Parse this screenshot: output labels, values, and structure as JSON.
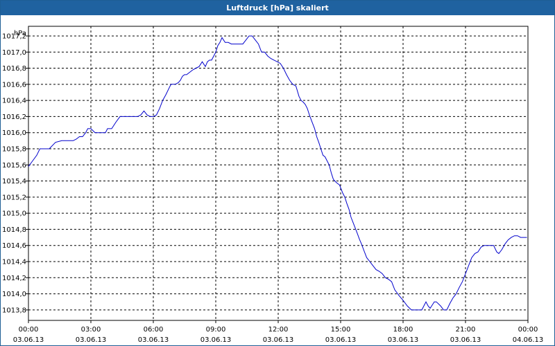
{
  "window": {
    "title": "Luftdruck [hPa] skaliert"
  },
  "chart_data": {
    "type": "line",
    "title": "Luftdruck [hPa] skaliert",
    "unit_label": "hPa",
    "xlabel": "",
    "ylabel": "hPa",
    "xlim": [
      0,
      24
    ],
    "ylim": [
      1013.67,
      1017.32
    ],
    "grid": true,
    "line_color": "#0000cc",
    "y_ticks": [
      1013.8,
      1014.0,
      1014.2,
      1014.4,
      1014.6,
      1014.8,
      1015.0,
      1015.2,
      1015.4,
      1015.6,
      1015.8,
      1016.0,
      1016.2,
      1016.4,
      1016.6,
      1016.8,
      1017.0,
      1017.2
    ],
    "y_tick_labels": [
      "1013,8",
      "1014,0",
      "1014,2",
      "1014,4",
      "1014,6",
      "1014,8",
      "1015,0",
      "1015,2",
      "1015,4",
      "1015,6",
      "1015,8",
      "1016,0",
      "1016,2",
      "1016,4",
      "1016,6",
      "1016,8",
      "1017,0",
      "1017,2"
    ],
    "x_ticks": [
      {
        "x": 0,
        "time": "00:00",
        "date": "03.06.13"
      },
      {
        "x": 3,
        "time": "03:00",
        "date": "03.06.13"
      },
      {
        "x": 6,
        "time": "06:00",
        "date": "03.06.13"
      },
      {
        "x": 9,
        "time": "09:00",
        "date": "03.06.13"
      },
      {
        "x": 12,
        "time": "12:00",
        "date": "03.06.13"
      },
      {
        "x": 15,
        "time": "15:00",
        "date": "03.06.13"
      },
      {
        "x": 18,
        "time": "18:00",
        "date": "03.06.13"
      },
      {
        "x": 21,
        "time": "21:00",
        "date": "03.06.13"
      },
      {
        "x": 24,
        "time": "00:00",
        "date": "04.06.13"
      }
    ],
    "series": [
      {
        "x": [
          0,
          0.2,
          0.4,
          0.55,
          0.7,
          0.85,
          1.0,
          1.3,
          1.6,
          1.9,
          2.0,
          2.15,
          2.3,
          2.45,
          2.6,
          2.75,
          2.85,
          3.0,
          3.2,
          3.4,
          3.55,
          3.7,
          3.8,
          3.9,
          4.0,
          4.2,
          4.4,
          4.5,
          4.55,
          4.65,
          4.75,
          4.9,
          5.0,
          5.1,
          5.25,
          5.4,
          5.55,
          5.7,
          5.85,
          6.0,
          6.15,
          6.3,
          6.45,
          6.6,
          6.75,
          6.85,
          6.95,
          7.05,
          7.2,
          7.3,
          7.4,
          7.5,
          7.6,
          7.75,
          7.9,
          8.05,
          8.2,
          8.35,
          8.5,
          8.6,
          8.7,
          8.8,
          8.9,
          9.0,
          9.1,
          9.2,
          9.3,
          9.45,
          9.6,
          9.75,
          9.85,
          9.95,
          10.05,
          10.15,
          10.3,
          10.45,
          10.6,
          10.75,
          10.9,
          11.05,
          11.2,
          11.35,
          11.5,
          11.65,
          11.8,
          11.95,
          12.1,
          12.25,
          12.4,
          12.55,
          12.7,
          12.85,
          13.0,
          13.1,
          13.2,
          13.3,
          13.4,
          13.5,
          13.6,
          13.75,
          13.85,
          13.95,
          14.05,
          14.15,
          14.25,
          14.35,
          14.45,
          14.55,
          14.65,
          14.8,
          14.95,
          15.1,
          15.2,
          15.3,
          15.4,
          15.5,
          15.65,
          15.8,
          15.9,
          16.0,
          16.1,
          16.25,
          16.4,
          16.55,
          16.7,
          16.85,
          17.0,
          17.15,
          17.3,
          17.45,
          17.6,
          17.8,
          18.0,
          18.2,
          18.4,
          18.6,
          18.75,
          18.9,
          19.0,
          19.1,
          19.2,
          19.3,
          19.4,
          19.5,
          19.6,
          19.8,
          19.95,
          20.1,
          20.25,
          20.4,
          20.55,
          20.7,
          20.85,
          21.0,
          21.15,
          21.3,
          21.45,
          21.6,
          21.75,
          21.9,
          22.05,
          22.2,
          22.35,
          22.5,
          22.6,
          22.75,
          22.9,
          23.05,
          23.2,
          23.35,
          23.5,
          23.65,
          23.8,
          23.95
        ],
        "values": [
          1015.58,
          1015.65,
          1015.72,
          1015.8,
          1015.8,
          1015.8,
          1015.8,
          1015.88,
          1015.9,
          1015.9,
          1015.9,
          1015.9,
          1015.92,
          1015.95,
          1015.95,
          1016.0,
          1016.05,
          1016.05,
          1016.0,
          1016.0,
          1016.0,
          1016.0,
          1016.05,
          1016.05,
          1016.05,
          1016.13,
          1016.2,
          1016.2,
          1016.2,
          1016.2,
          1016.2,
          1016.2,
          1016.2,
          1016.2,
          1016.2,
          1016.22,
          1016.27,
          1016.22,
          1016.2,
          1016.2,
          1016.22,
          1016.3,
          1016.4,
          1016.47,
          1016.55,
          1016.6,
          1016.6,
          1016.6,
          1016.62,
          1016.65,
          1016.7,
          1016.72,
          1016.72,
          1016.75,
          1016.78,
          1016.8,
          1016.82,
          1016.88,
          1016.82,
          1016.88,
          1016.9,
          1016.9,
          1016.95,
          1017.0,
          1017.08,
          1017.12,
          1017.18,
          1017.12,
          1017.12,
          1017.1,
          1017.1,
          1017.1,
          1017.1,
          1017.1,
          1017.1,
          1017.15,
          1017.2,
          1017.2,
          1017.15,
          1017.1,
          1017.0,
          1017.0,
          1016.95,
          1016.92,
          1016.9,
          1016.88,
          1016.86,
          1016.8,
          1016.72,
          1016.65,
          1016.6,
          1016.58,
          1016.45,
          1016.4,
          1016.38,
          1016.35,
          1016.3,
          1016.22,
          1016.15,
          1016.05,
          1015.95,
          1015.88,
          1015.8,
          1015.72,
          1015.7,
          1015.65,
          1015.6,
          1015.5,
          1015.42,
          1015.38,
          1015.35,
          1015.25,
          1015.2,
          1015.12,
          1015.05,
          1014.95,
          1014.85,
          1014.75,
          1014.68,
          1014.62,
          1014.55,
          1014.45,
          1014.4,
          1014.35,
          1014.3,
          1014.28,
          1014.25,
          1014.2,
          1014.18,
          1014.15,
          1014.05,
          1013.98,
          1013.92,
          1013.85,
          1013.8,
          1013.8,
          1013.8,
          1013.8,
          1013.85,
          1013.9,
          1013.85,
          1013.82,
          1013.86,
          1013.9,
          1013.9,
          1013.85,
          1013.8,
          1013.8,
          1013.88,
          1013.95,
          1014.0,
          1014.08,
          1014.15,
          1014.25,
          1014.35,
          1014.45,
          1014.5,
          1014.52,
          1014.58,
          1014.6,
          1014.6,
          1014.6,
          1014.6,
          1014.52,
          1014.5,
          1014.55,
          1014.62,
          1014.67,
          1014.7,
          1014.72,
          1014.72,
          1014.7,
          1014.7,
          1014.7
        ]
      }
    ]
  }
}
